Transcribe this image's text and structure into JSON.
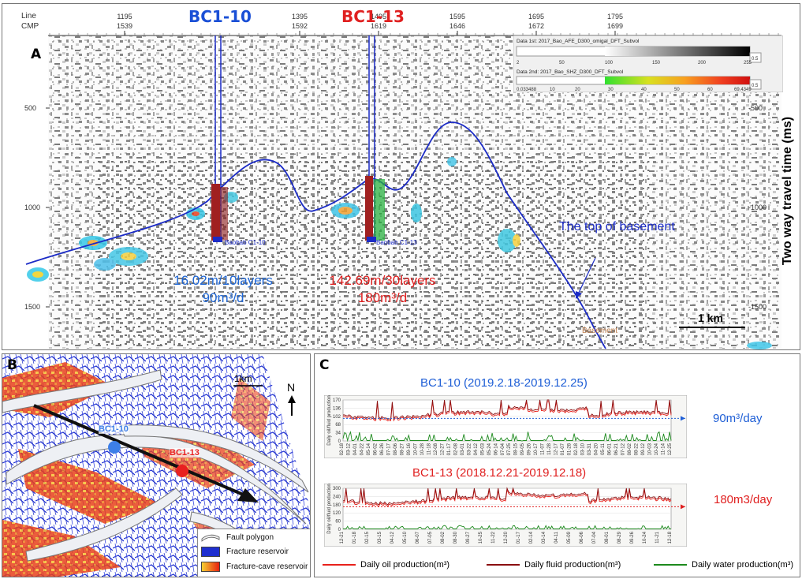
{
  "panel_a": {
    "label": "A",
    "line_label": "Line",
    "cmp_label": "CMP",
    "line_ticks": [
      "1195",
      "1395",
      "1495",
      "1595",
      "1695",
      "1795"
    ],
    "cmp_ticks": [
      "1539",
      "1592",
      "1619",
      "1646",
      "1672",
      "1699"
    ],
    "time_ticks": [
      "500",
      "1000",
      "1500"
    ],
    "right_time_ticks": [
      "-500",
      "-1000",
      "-1500"
    ],
    "wells": [
      {
        "name": "BC1-10",
        "color": "#1a4fd6",
        "tag": "Baobab C1-10",
        "prod_line1": "16.02m/10layers",
        "prod_line2": "90m³/d"
      },
      {
        "name": "BC1-13",
        "color": "#e02020",
        "tag": "Baobab C1-13",
        "prod_line1": "142.69m/30layers",
        "prod_line2": "180m³/d"
      }
    ],
    "basement_label": "The top of basement",
    "basement_small": "Basement",
    "scale_label": "1 km",
    "y_axis_title": "Two way travel time (ms)",
    "colorbars": [
      {
        "title": "Data 1st: 2017_Bao_AFE_D300_omigal_DFT_Subvol",
        "ticks": [
          "2",
          "50",
          "100",
          "150",
          "200",
          "255"
        ],
        "side": "0.5"
      },
      {
        "title": "Data 2nd: 2017_Bao_SHZ_D300_DFT_Subvol",
        "ticks": [
          "0.033488",
          "10",
          "20",
          "30",
          "40",
          "50",
          "60",
          "69.4349"
        ],
        "side": "0.5"
      }
    ]
  },
  "panel_b": {
    "label": "B",
    "scale_label": "1km",
    "north": "N",
    "well1": "BC1-10",
    "well2": "BC1-13",
    "legend": [
      {
        "label": "Fault polygon"
      },
      {
        "label": "Fracture reservoir",
        "color": "#1e2fd0"
      },
      {
        "label": "Fracture-cave reservoir"
      }
    ]
  },
  "panel_c": {
    "label": "C",
    "chart_data": [
      {
        "type": "line",
        "title": "BC1-10 (2019.2.18-2019.12.25)",
        "ylabel": "Daily oil/fluid production",
        "yticks": [
          "170",
          "136",
          "102",
          "68",
          "34",
          "0"
        ],
        "annotation": "90m³/day",
        "x": [
          "02-18",
          "03-12",
          "04-01",
          "04-22",
          "05-14",
          "06-02",
          "06-26",
          "07-17",
          "08-06",
          "08-27",
          "09-16",
          "10-07",
          "10-28",
          "11-18",
          "12-08",
          "12-27",
          "01-17",
          "02-08",
          "03-01",
          "03-22",
          "04-12",
          "05-03",
          "05-24",
          "06-14",
          "07-04",
          "07-25",
          "08-15",
          "09-05",
          "09-26",
          "10-17",
          "11-07",
          "11-28",
          "12-17",
          "01-07",
          "01-28",
          "02-18",
          "03-10",
          "03-31",
          "04-20",
          "05-11",
          "06-01",
          "06-21",
          "07-12",
          "08-02",
          "08-22",
          "09-12",
          "10-03",
          "10-24",
          "11-14",
          "12-25"
        ]
      },
      {
        "type": "line",
        "title": "BC1-13 (2018.12.21-2019.12.18)",
        "ylabel": "Daily oil/fluid production",
        "yticks": [
          "300",
          "240",
          "180",
          "120",
          "60",
          "0"
        ],
        "annotation": "180m3/day",
        "x": [
          "12-21",
          "01-18",
          "02-15",
          "03-15",
          "04-12",
          "05-10",
          "06-07",
          "07-05",
          "08-02",
          "08-30",
          "09-27",
          "10-25",
          "11-22",
          "12-20",
          "01-17",
          "02-14",
          "03-14",
          "04-11",
          "05-09",
          "06-06",
          "07-04",
          "08-01",
          "08-29",
          "09-26",
          "10-24",
          "11-21",
          "12-18"
        ]
      }
    ],
    "legend": [
      {
        "label": "Daily oil production(m³)",
        "color": "#e8221c"
      },
      {
        "label": "Daily fluid production(m³)",
        "color": "#8a0f10"
      },
      {
        "label": "Daily water production(m³)",
        "color": "#1d8a1d"
      }
    ]
  }
}
